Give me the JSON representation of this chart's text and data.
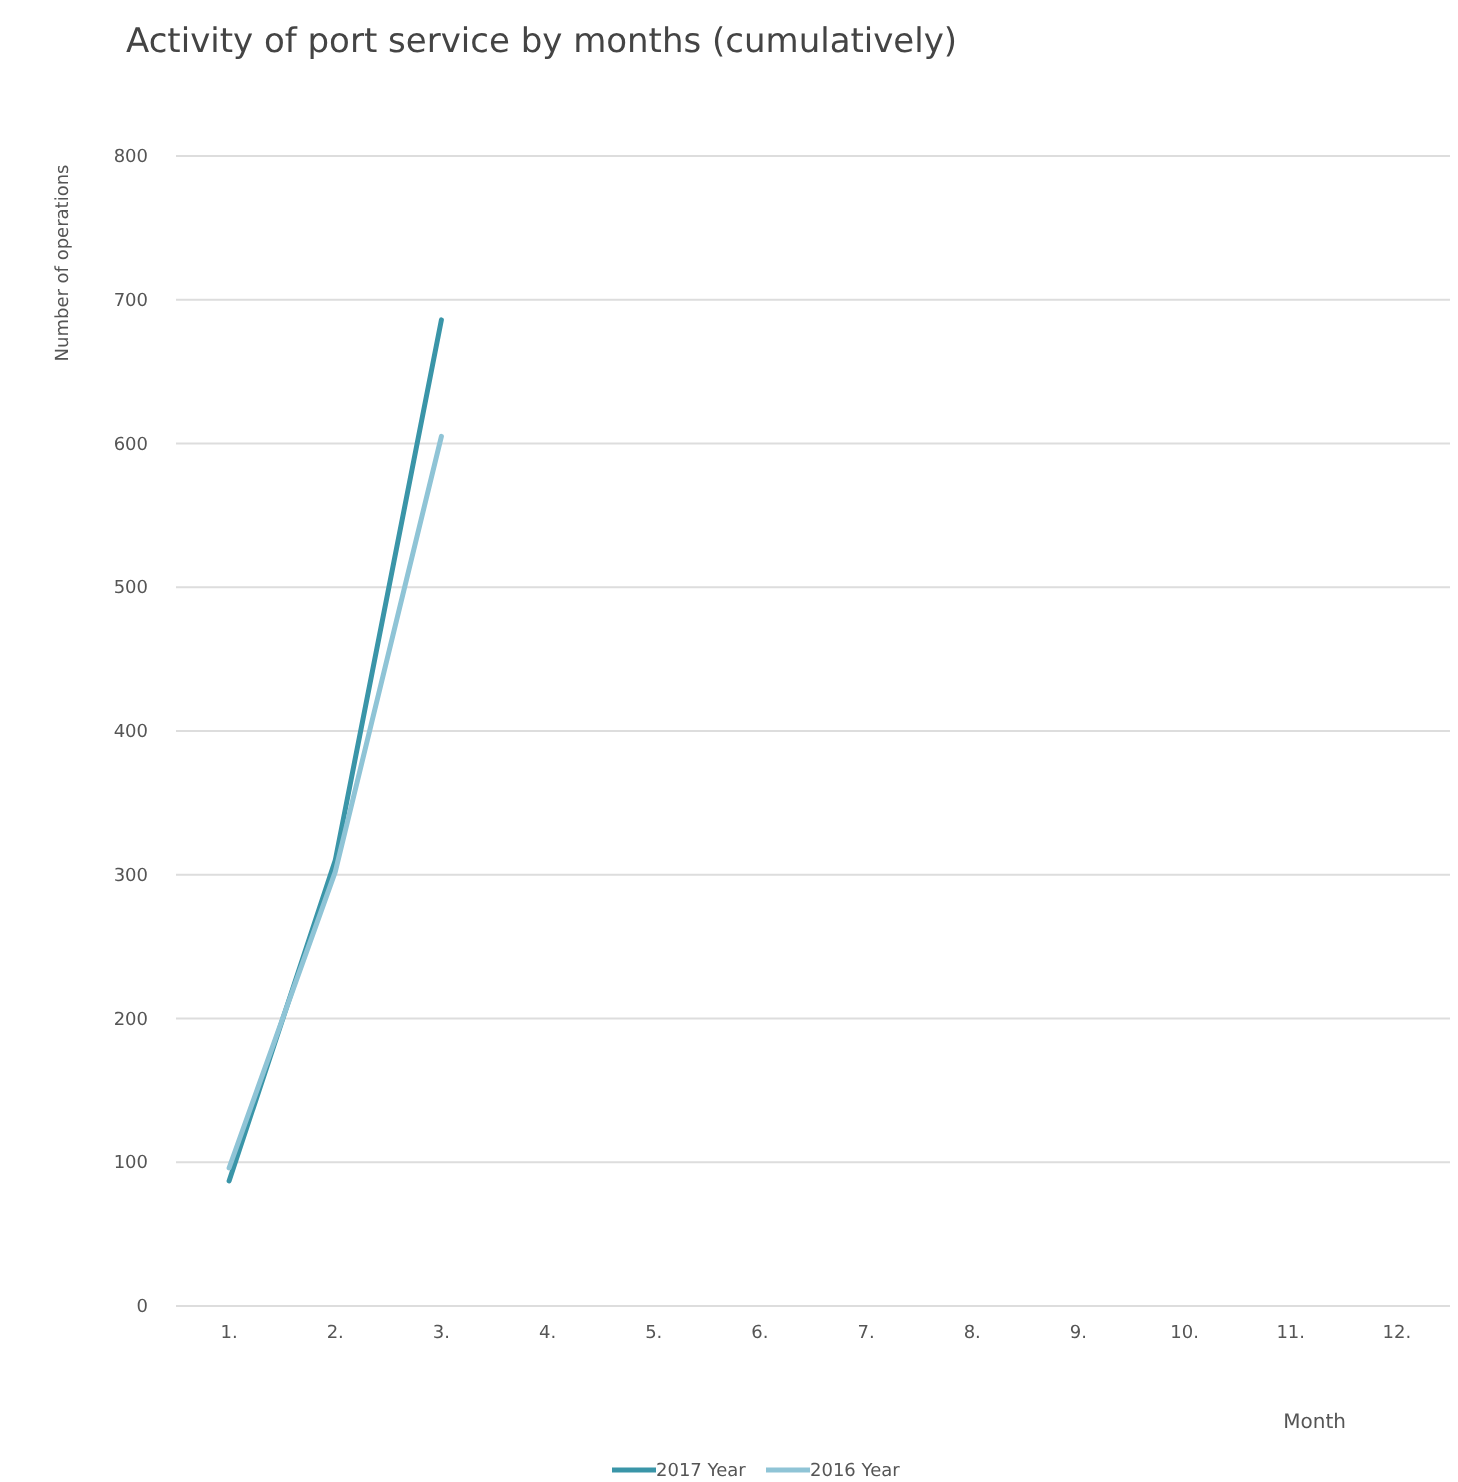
{
  "chart_data": {
    "type": "line",
    "title": "Activity of port service by months (cumulatively)",
    "xlabel": "Month",
    "ylabel": "Number of operations",
    "categories": [
      "1.",
      "2.",
      "3.",
      "4.",
      "5.",
      "6.",
      "7.",
      "8.",
      "9.",
      "10.",
      "11.",
      "12."
    ],
    "series": [
      {
        "name": "2017 Year",
        "color": "#3a95a8",
        "values": [
          87,
          310,
          686,
          null,
          null,
          null,
          null,
          null,
          null,
          null,
          null,
          null
        ]
      },
      {
        "name": "2016 Year",
        "color": "#8fc4d6",
        "values": [
          96,
          302,
          605,
          null,
          null,
          null,
          null,
          null,
          null,
          null,
          null,
          null
        ]
      }
    ],
    "ylim": [
      0,
      800
    ],
    "yticks": [
      0,
      100,
      200,
      300,
      400,
      500,
      600,
      700,
      800
    ],
    "grid": "y",
    "legend": "bottom",
    "marker": "none",
    "line_style": "solid"
  }
}
